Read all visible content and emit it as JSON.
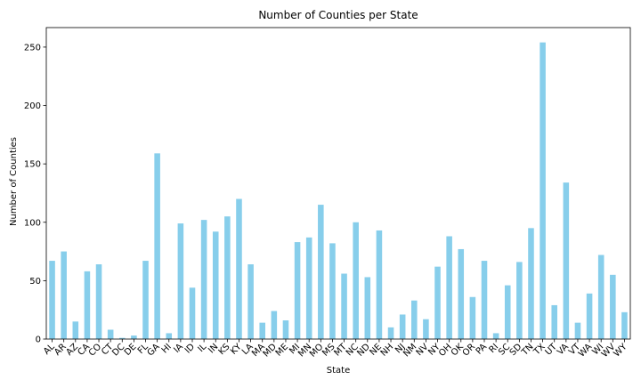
{
  "chart_data": {
    "type": "bar",
    "title": "Number of Counties per State",
    "xlabel": "State",
    "ylabel": "Number of Counties",
    "categories": [
      "AL",
      "AR",
      "AZ",
      "CA",
      "CO",
      "CT",
      "DC",
      "DE",
      "FL",
      "GA",
      "HI",
      "IA",
      "ID",
      "IL",
      "IN",
      "KS",
      "KY",
      "LA",
      "MA",
      "MD",
      "ME",
      "MI",
      "MN",
      "MO",
      "MS",
      "MT",
      "NC",
      "ND",
      "NE",
      "NH",
      "NJ",
      "NM",
      "NV",
      "NY",
      "OH",
      "OK",
      "OR",
      "PA",
      "RI",
      "SC",
      "SD",
      "TN",
      "TX",
      "UT",
      "VA",
      "VT",
      "WA",
      "WI",
      "WV",
      "WY"
    ],
    "values": [
      67,
      75,
      15,
      58,
      64,
      8,
      1,
      3,
      67,
      159,
      5,
      99,
      44,
      102,
      92,
      105,
      120,
      64,
      14,
      24,
      16,
      83,
      87,
      115,
      82,
      56,
      100,
      53,
      93,
      10,
      21,
      33,
      17,
      62,
      88,
      77,
      36,
      67,
      5,
      46,
      66,
      95,
      254,
      29,
      134,
      14,
      39,
      72,
      55,
      23
    ],
    "yticks": [
      0,
      50,
      100,
      150,
      200,
      250
    ],
    "ylim": [
      0,
      266.7
    ],
    "bar_color": "#87ceeb",
    "grid": false
  }
}
